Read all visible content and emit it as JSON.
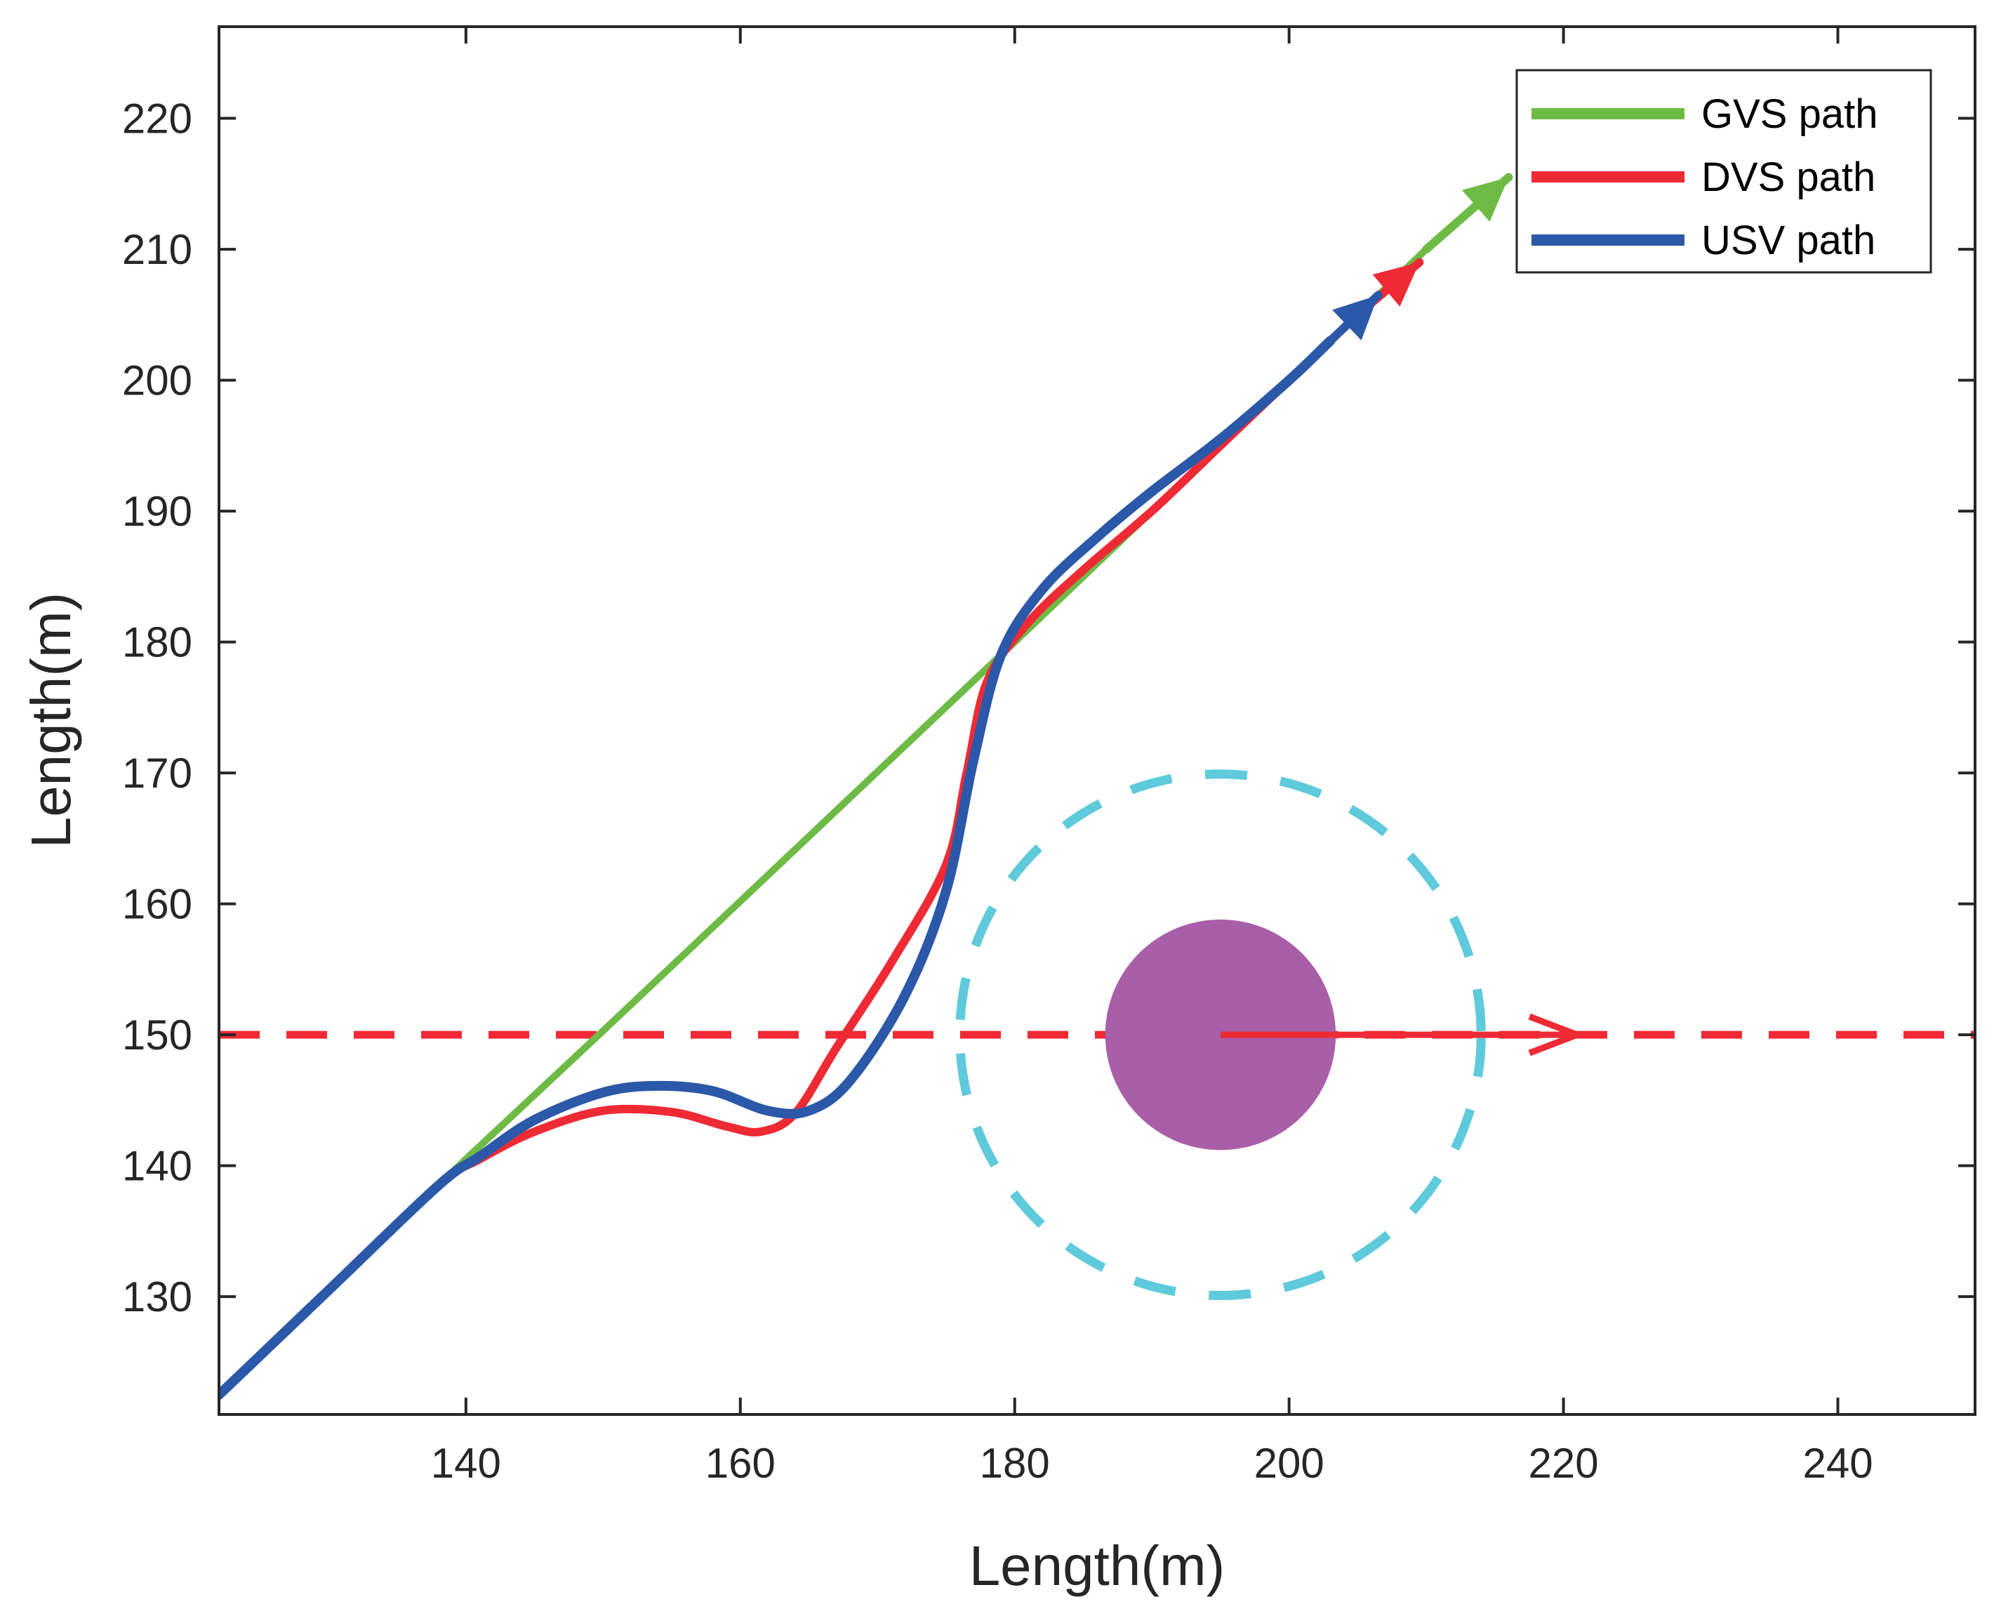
{
  "chart_data": {
    "type": "line",
    "title": "",
    "xlabel": "Length(m)",
    "ylabel": "Length(m)",
    "xlim": [
      122,
      250
    ],
    "ylim": [
      121,
      227
    ],
    "xticks": [
      140,
      160,
      180,
      200,
      220,
      240
    ],
    "yticks": [
      130,
      140,
      150,
      160,
      170,
      180,
      190,
      200,
      210,
      220
    ],
    "grid": false,
    "legend": "top-right",
    "colors": {
      "gvs": "#6dbb45",
      "dvs": "#ee2a35",
      "usv": "#2b58a8",
      "obstacle": "#a95ea8",
      "safety_circle": "#5ecadb",
      "axis": "#262626"
    },
    "series": [
      {
        "name": "GVS path",
        "color": "#6dbb45",
        "x": [
          122,
          130,
          140,
          150,
          160,
          170,
          180,
          190,
          200,
          205,
          210
        ],
        "y": [
          122.5,
          130.5,
          140.5,
          150.3,
          160.2,
          170.1,
          180,
          190,
          200,
          205,
          210
        ]
      },
      {
        "name": "DVS path",
        "color": "#ee2a35",
        "x": [
          122,
          130,
          138,
          141,
          145,
          150,
          155,
          159,
          161.5,
          164,
          167,
          171,
          175,
          176.5,
          178,
          181,
          185,
          190,
          195,
          200,
          205
        ],
        "y": [
          122.5,
          130.5,
          138.5,
          140.5,
          142.6,
          144.2,
          144.1,
          143,
          142.6,
          144,
          149,
          155.5,
          163,
          170,
          177,
          181.5,
          185.5,
          190,
          195,
          200,
          205
        ]
      },
      {
        "name": "USV path",
        "color": "#2b58a8",
        "x": [
          122,
          130,
          138,
          141,
          145,
          150,
          154,
          158,
          162,
          165,
          168,
          172,
          175,
          177,
          179,
          182,
          186,
          190,
          195,
          200,
          203
        ],
        "y": [
          122.5,
          130.5,
          138.5,
          140.7,
          143.5,
          145.6,
          146.1,
          145.7,
          144.2,
          144.2,
          146.5,
          153,
          161,
          171,
          179,
          184,
          188,
          191.5,
          195.5,
          200,
          203
        ]
      }
    ],
    "heading_arrows": [
      {
        "series": "GVS path",
        "from": [
          210,
          210
        ],
        "to": [
          216,
          215.5
        ]
      },
      {
        "series": "DVS path",
        "from": [
          205,
          205
        ],
        "to": [
          209.5,
          209
        ]
      },
      {
        "series": "USV path",
        "from": [
          201.5,
          201.5
        ],
        "to": [
          206.5,
          206.5
        ]
      }
    ],
    "obstacle": {
      "center": [
        195,
        150
      ],
      "radius": 8.4,
      "safety_radius": 19,
      "velocity_to": [
        221,
        150
      ]
    },
    "reference_line": {
      "y": 150,
      "style": "dashed",
      "color": "#ee2a35"
    }
  }
}
